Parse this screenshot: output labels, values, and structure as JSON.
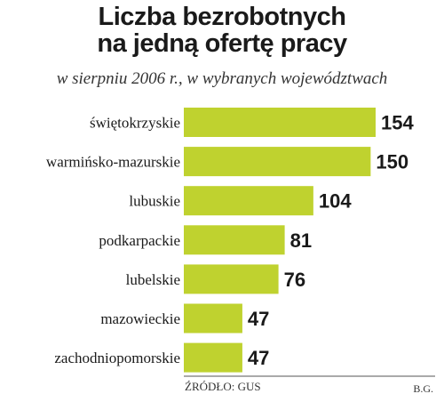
{
  "header": {
    "title_line1": "Liczba bezrobotnych",
    "title_line2": "na jedną ofertę pracy",
    "subtitle": "w sierpniu 2006 r., w wybranych województwach"
  },
  "footer": {
    "source": "ŹRÓDŁO: GUS",
    "author": "B.G."
  },
  "colors": {
    "bar": "#bfd22f"
  },
  "chart_data": {
    "type": "bar",
    "orientation": "horizontal",
    "title": "Liczba bezrobotnych na jedną ofertę pracy",
    "subtitle": "w sierpniu 2006 r., w wybranych województwach",
    "categories": [
      "świętokrzyskie",
      "warmińsko-mazurskie",
      "lubuskie",
      "podkarpackie",
      "lubelskie",
      "mazowieckie",
      "zachodniopomorskie"
    ],
    "values": [
      154,
      150,
      104,
      81,
      76,
      47,
      47
    ],
    "xlim": [
      0,
      154
    ],
    "grid": false,
    "legend": "none"
  }
}
